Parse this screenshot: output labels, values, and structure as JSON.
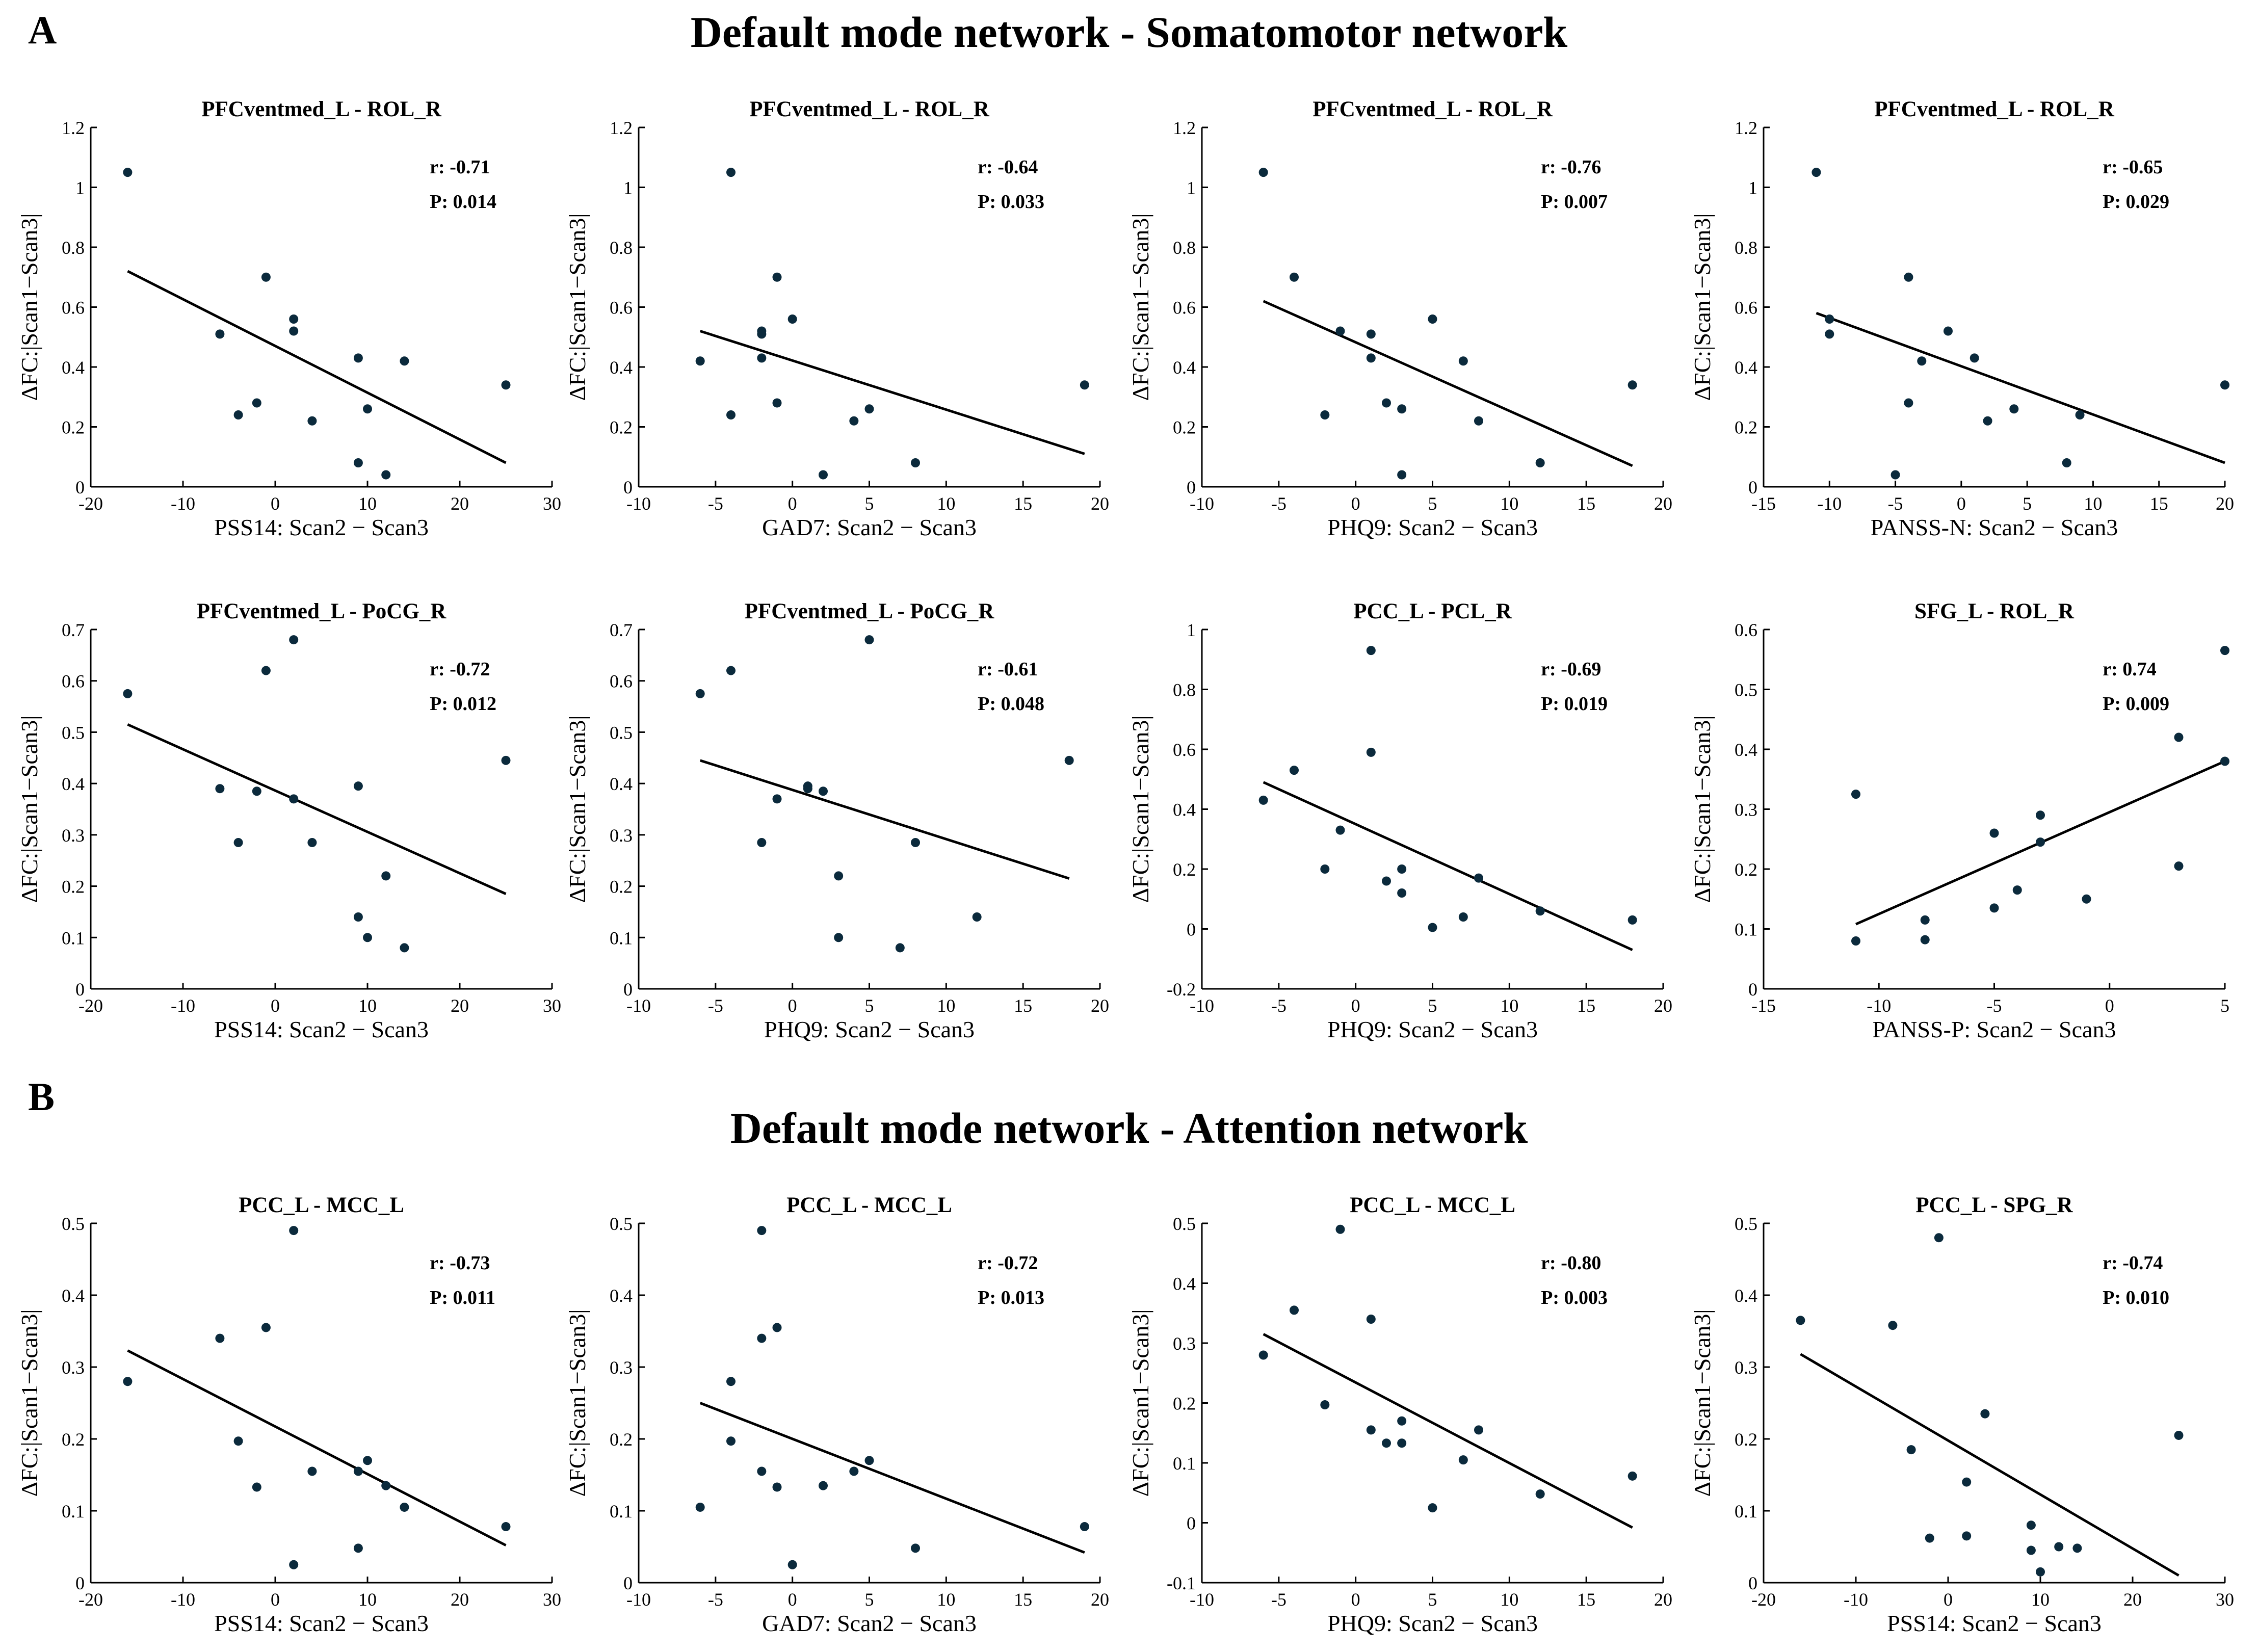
{
  "figure": {
    "sections": [
      {
        "letter": "A",
        "title": "Default mode network - Somatomotor network"
      },
      {
        "letter": "B",
        "title": "Default mode network - Attention network"
      }
    ]
  },
  "chart_data": [
    {
      "type": "scatter",
      "section": "A",
      "title": "PFCventmed_L - ROL_R",
      "xlabel": "PSS14: Scan2 − Scan3",
      "ylabel": "ΔFC:|Scan1−Scan3|",
      "xlim": [
        -20,
        30
      ],
      "xticks": [
        -20,
        -10,
        0,
        10,
        20,
        30
      ],
      "ylim": [
        0,
        1.2
      ],
      "yticks": [
        0,
        0.2,
        0.4,
        0.6,
        0.8,
        1,
        1.2
      ],
      "points": [
        [
          -16,
          1.05
        ],
        [
          -6,
          0.51
        ],
        [
          -4,
          0.24
        ],
        [
          -2,
          0.28
        ],
        [
          -1,
          0.7
        ],
        [
          2,
          0.56
        ],
        [
          2,
          0.52
        ],
        [
          4,
          0.22
        ],
        [
          9,
          0.43
        ],
        [
          9,
          0.08
        ],
        [
          10,
          0.26
        ],
        [
          12,
          0.04
        ],
        [
          14,
          0.42
        ],
        [
          25,
          0.34
        ]
      ],
      "fit": [
        [
          -16,
          0.72
        ],
        [
          25,
          0.08
        ]
      ],
      "r_text": "r: -0.71",
      "p_text": "P: 0.014"
    },
    {
      "type": "scatter",
      "section": "A",
      "title": "PFCventmed_L - ROL_R",
      "xlabel": "GAD7: Scan2 − Scan3",
      "ylabel": "ΔFC:|Scan1−Scan3|",
      "xlim": [
        -10,
        20
      ],
      "xticks": [
        -10,
        -5,
        0,
        5,
        10,
        15,
        20
      ],
      "ylim": [
        0,
        1.2
      ],
      "yticks": [
        0,
        0.2,
        0.4,
        0.6,
        0.8,
        1,
        1.2
      ],
      "points": [
        [
          -6,
          0.42
        ],
        [
          -4,
          1.05
        ],
        [
          -4,
          0.24
        ],
        [
          -2,
          0.52
        ],
        [
          -2,
          0.51
        ],
        [
          -2,
          0.43
        ],
        [
          -1,
          0.7
        ],
        [
          -1,
          0.28
        ],
        [
          0,
          0.56
        ],
        [
          2,
          0.04
        ],
        [
          4,
          0.22
        ],
        [
          5,
          0.26
        ],
        [
          8,
          0.08
        ],
        [
          19,
          0.34
        ]
      ],
      "fit": [
        [
          -6,
          0.52
        ],
        [
          19,
          0.11
        ]
      ],
      "r_text": "r: -0.64",
      "p_text": "P: 0.033"
    },
    {
      "type": "scatter",
      "section": "A",
      "title": "PFCventmed_L - ROL_R",
      "xlabel": "PHQ9: Scan2 − Scan3",
      "ylabel": "ΔFC:|Scan1−Scan3|",
      "xlim": [
        -10,
        20
      ],
      "xticks": [
        -10,
        -5,
        0,
        5,
        10,
        15,
        20
      ],
      "ylim": [
        0,
        1.2
      ],
      "yticks": [
        0,
        0.2,
        0.4,
        0.6,
        0.8,
        1,
        1.2
      ],
      "points": [
        [
          -6,
          1.05
        ],
        [
          -4,
          0.7
        ],
        [
          -2,
          0.24
        ],
        [
          -1,
          0.52
        ],
        [
          1,
          0.51
        ],
        [
          1,
          0.43
        ],
        [
          2,
          0.28
        ],
        [
          3,
          0.26
        ],
        [
          3,
          0.04
        ],
        [
          5,
          0.56
        ],
        [
          7,
          0.42
        ],
        [
          8,
          0.22
        ],
        [
          12,
          0.08
        ],
        [
          18,
          0.34
        ]
      ],
      "fit": [
        [
          -6,
          0.62
        ],
        [
          18,
          0.07
        ]
      ],
      "r_text": "r: -0.76",
      "p_text": "P: 0.007"
    },
    {
      "type": "scatter",
      "section": "A",
      "title": "PFCventmed_L - ROL_R",
      "xlabel": "PANSS-N: Scan2 − Scan3",
      "ylabel": "ΔFC:|Scan1−Scan3|",
      "xlim": [
        -15,
        20
      ],
      "xticks": [
        -15,
        -10,
        -5,
        0,
        5,
        10,
        15,
        20
      ],
      "ylim": [
        0,
        1.2
      ],
      "yticks": [
        0,
        0.2,
        0.4,
        0.6,
        0.8,
        1,
        1.2
      ],
      "points": [
        [
          -11,
          1.05
        ],
        [
          -10,
          0.56
        ],
        [
          -10,
          0.51
        ],
        [
          -5,
          0.04
        ],
        [
          -4,
          0.7
        ],
        [
          -4,
          0.28
        ],
        [
          -3,
          0.42
        ],
        [
          -1,
          0.52
        ],
        [
          1,
          0.43
        ],
        [
          2,
          0.22
        ],
        [
          4,
          0.26
        ],
        [
          8,
          0.08
        ],
        [
          9,
          0.24
        ],
        [
          20,
          0.34
        ]
      ],
      "fit": [
        [
          -11,
          0.58
        ],
        [
          20,
          0.08
        ]
      ],
      "r_text": "r: -0.65",
      "p_text": "P: 0.029"
    },
    {
      "type": "scatter",
      "section": "A",
      "title": "PFCventmed_L - PoCG_R",
      "xlabel": "PSS14: Scan2 − Scan3",
      "ylabel": "ΔFC:|Scan1−Scan3|",
      "xlim": [
        -20,
        30
      ],
      "xticks": [
        -20,
        -10,
        0,
        10,
        20,
        30
      ],
      "ylim": [
        0,
        0.7
      ],
      "yticks": [
        0,
        0.1,
        0.2,
        0.3,
        0.4,
        0.5,
        0.6,
        0.7
      ],
      "points": [
        [
          -16,
          0.575
        ],
        [
          -6,
          0.39
        ],
        [
          -4,
          0.285
        ],
        [
          -2,
          0.385
        ],
        [
          -1,
          0.62
        ],
        [
          2,
          0.68
        ],
        [
          2,
          0.37
        ],
        [
          4,
          0.285
        ],
        [
          9,
          0.395
        ],
        [
          9,
          0.14
        ],
        [
          10,
          0.1
        ],
        [
          12,
          0.22
        ],
        [
          14,
          0.08
        ],
        [
          25,
          0.445
        ]
      ],
      "fit": [
        [
          -16,
          0.515
        ],
        [
          25,
          0.185
        ]
      ],
      "r_text": "r: -0.72",
      "p_text": "P: 0.012"
    },
    {
      "type": "scatter",
      "section": "A",
      "title": "PFCventmed_L - PoCG_R",
      "xlabel": "PHQ9: Scan2 − Scan3",
      "ylabel": "ΔFC:|Scan1−Scan3|",
      "xlim": [
        -10,
        20
      ],
      "xticks": [
        -10,
        -5,
        0,
        5,
        10,
        15,
        20
      ],
      "ylim": [
        0,
        0.7
      ],
      "yticks": [
        0,
        0.1,
        0.2,
        0.3,
        0.4,
        0.5,
        0.6,
        0.7
      ],
      "points": [
        [
          -6,
          0.575
        ],
        [
          -4,
          0.62
        ],
        [
          -2,
          0.285
        ],
        [
          -1,
          0.37
        ],
        [
          1,
          0.395
        ],
        [
          1,
          0.39
        ],
        [
          2,
          0.385
        ],
        [
          3,
          0.22
        ],
        [
          3,
          0.1
        ],
        [
          5,
          0.68
        ],
        [
          7,
          0.08
        ],
        [
          8,
          0.285
        ],
        [
          12,
          0.14
        ],
        [
          18,
          0.445
        ]
      ],
      "fit": [
        [
          -6,
          0.445
        ],
        [
          18,
          0.215
        ]
      ],
      "r_text": "r: -0.61",
      "p_text": "P: 0.048"
    },
    {
      "type": "scatter",
      "section": "A",
      "title": "PCC_L - PCL_R",
      "xlabel": "PHQ9: Scan2 − Scan3",
      "ylabel": "ΔFC:|Scan1−Scan3|",
      "xlim": [
        -10,
        20
      ],
      "xticks": [
        -10,
        -5,
        0,
        5,
        10,
        15,
        20
      ],
      "ylim": [
        -0.2,
        1
      ],
      "yticks": [
        -0.2,
        0,
        0.2,
        0.4,
        0.6,
        0.8,
        1
      ],
      "points": [
        [
          -6,
          0.43
        ],
        [
          -4,
          0.53
        ],
        [
          -2,
          0.2
        ],
        [
          -1,
          0.33
        ],
        [
          1,
          0.93
        ],
        [
          1,
          0.59
        ],
        [
          2,
          0.16
        ],
        [
          3,
          0.2
        ],
        [
          3,
          0.12
        ],
        [
          5,
          0.005
        ],
        [
          7,
          0.04
        ],
        [
          8,
          0.17
        ],
        [
          12,
          0.06
        ],
        [
          18,
          0.03
        ]
      ],
      "fit": [
        [
          -6,
          0.49
        ],
        [
          18,
          -0.07
        ]
      ],
      "r_text": "r: -0.69",
      "p_text": "P: 0.019"
    },
    {
      "type": "scatter",
      "section": "A",
      "title": "SFG_L - ROL_R",
      "xlabel": "PANSS-P: Scan2 − Scan3",
      "ylabel": "ΔFC:|Scan1−Scan3|",
      "xlim": [
        -15,
        5
      ],
      "xticks": [
        -15,
        -10,
        -5,
        0,
        5
      ],
      "ylim": [
        0,
        0.6
      ],
      "yticks": [
        0,
        0.1,
        0.2,
        0.3,
        0.4,
        0.5,
        0.6
      ],
      "points": [
        [
          -11,
          0.325
        ],
        [
          -11,
          0.08
        ],
        [
          -8,
          0.115
        ],
        [
          -8,
          0.082
        ],
        [
          -5,
          0.26
        ],
        [
          -5,
          0.135
        ],
        [
          -4,
          0.165
        ],
        [
          -3,
          0.29
        ],
        [
          -3,
          0.245
        ],
        [
          -1,
          0.15
        ],
        [
          3,
          0.42
        ],
        [
          3,
          0.205
        ],
        [
          5,
          0.565
        ],
        [
          5,
          0.38
        ]
      ],
      "fit": [
        [
          -11,
          0.108
        ],
        [
          5,
          0.38
        ]
      ],
      "r_text": "r: 0.74",
      "p_text": "P: 0.009"
    },
    {
      "type": "scatter",
      "section": "B",
      "title": "PCC_L - MCC_L",
      "xlabel": "PSS14: Scan2 − Scan3",
      "ylabel": "ΔFC:|Scan1−Scan3|",
      "xlim": [
        -20,
        30
      ],
      "xticks": [
        -20,
        -10,
        0,
        10,
        20,
        30
      ],
      "ylim": [
        0,
        0.5
      ],
      "yticks": [
        0,
        0.1,
        0.2,
        0.3,
        0.4,
        0.5
      ],
      "points": [
        [
          -16,
          0.28
        ],
        [
          -6,
          0.34
        ],
        [
          -4,
          0.197
        ],
        [
          -2,
          0.133
        ],
        [
          -1,
          0.355
        ],
        [
          2,
          0.49
        ],
        [
          2,
          0.025
        ],
        [
          4,
          0.155
        ],
        [
          9,
          0.155
        ],
        [
          9,
          0.048
        ],
        [
          10,
          0.17
        ],
        [
          12,
          0.135
        ],
        [
          14,
          0.105
        ],
        [
          25,
          0.078
        ]
      ],
      "fit": [
        [
          -16,
          0.323
        ],
        [
          25,
          0.052
        ]
      ],
      "r_text": "r: -0.73",
      "p_text": "P: 0.011"
    },
    {
      "type": "scatter",
      "section": "B",
      "title": "PCC_L - MCC_L",
      "xlabel": "GAD7: Scan2 − Scan3",
      "ylabel": "ΔFC:|Scan1−Scan3|",
      "xlim": [
        -10,
        20
      ],
      "xticks": [
        -10,
        -5,
        0,
        5,
        10,
        15,
        20
      ],
      "ylim": [
        0,
        0.5
      ],
      "yticks": [
        0,
        0.1,
        0.2,
        0.3,
        0.4,
        0.5
      ],
      "points": [
        [
          -6,
          0.105
        ],
        [
          -4,
          0.28
        ],
        [
          -4,
          0.197
        ],
        [
          -2,
          0.49
        ],
        [
          -2,
          0.34
        ],
        [
          -2,
          0.155
        ],
        [
          -1,
          0.355
        ],
        [
          -1,
          0.133
        ],
        [
          0,
          0.025
        ],
        [
          2,
          0.135
        ],
        [
          4,
          0.155
        ],
        [
          5,
          0.17
        ],
        [
          8,
          0.048
        ],
        [
          19,
          0.078
        ]
      ],
      "fit": [
        [
          -6,
          0.25
        ],
        [
          19,
          0.042
        ]
      ],
      "r_text": "r: -0.72",
      "p_text": "P: 0.013"
    },
    {
      "type": "scatter",
      "section": "B",
      "title": "PCC_L - MCC_L",
      "xlabel": "PHQ9: Scan2 − Scan3",
      "ylabel": "ΔFC:|Scan1−Scan3|",
      "xlim": [
        -10,
        20
      ],
      "xticks": [
        -10,
        -5,
        0,
        5,
        10,
        15,
        20
      ],
      "ylim": [
        -0.1,
        0.5
      ],
      "yticks": [
        -0.1,
        0,
        0.1,
        0.2,
        0.3,
        0.4,
        0.5
      ],
      "points": [
        [
          -6,
          0.28
        ],
        [
          -4,
          0.355
        ],
        [
          -2,
          0.197
        ],
        [
          -1,
          0.49
        ],
        [
          1,
          0.34
        ],
        [
          1,
          0.155
        ],
        [
          2,
          0.133
        ],
        [
          3,
          0.17
        ],
        [
          3,
          0.133
        ],
        [
          5,
          0.025
        ],
        [
          7,
          0.105
        ],
        [
          8,
          0.155
        ],
        [
          12,
          0.048
        ],
        [
          18,
          0.078
        ]
      ],
      "fit": [
        [
          -6,
          0.315
        ],
        [
          18,
          -0.008
        ]
      ],
      "r_text": "r: -0.80",
      "p_text": "P: 0.003"
    },
    {
      "type": "scatter",
      "section": "B",
      "title": "PCC_L - SPG_R",
      "xlabel": "PSS14: Scan2 − Scan3",
      "ylabel": "ΔFC:|Scan1−Scan3|",
      "xlim": [
        -20,
        30
      ],
      "xticks": [
        -20,
        -10,
        0,
        10,
        20,
        30
      ],
      "ylim": [
        0,
        0.5
      ],
      "yticks": [
        0,
        0.1,
        0.2,
        0.3,
        0.4,
        0.5
      ],
      "points": [
        [
          -16,
          0.365
        ],
        [
          -6,
          0.358
        ],
        [
          -4,
          0.185
        ],
        [
          -2,
          0.062
        ],
        [
          -1,
          0.48
        ],
        [
          2,
          0.14
        ],
        [
          2,
          0.065
        ],
        [
          4,
          0.235
        ],
        [
          9,
          0.08
        ],
        [
          9,
          0.045
        ],
        [
          10,
          0.015
        ],
        [
          12,
          0.05
        ],
        [
          14,
          0.048
        ],
        [
          25,
          0.205
        ]
      ],
      "fit": [
        [
          -16,
          0.318
        ],
        [
          25,
          0.01
        ]
      ],
      "r_text": "r: -0.74",
      "p_text": "P: 0.010"
    }
  ]
}
